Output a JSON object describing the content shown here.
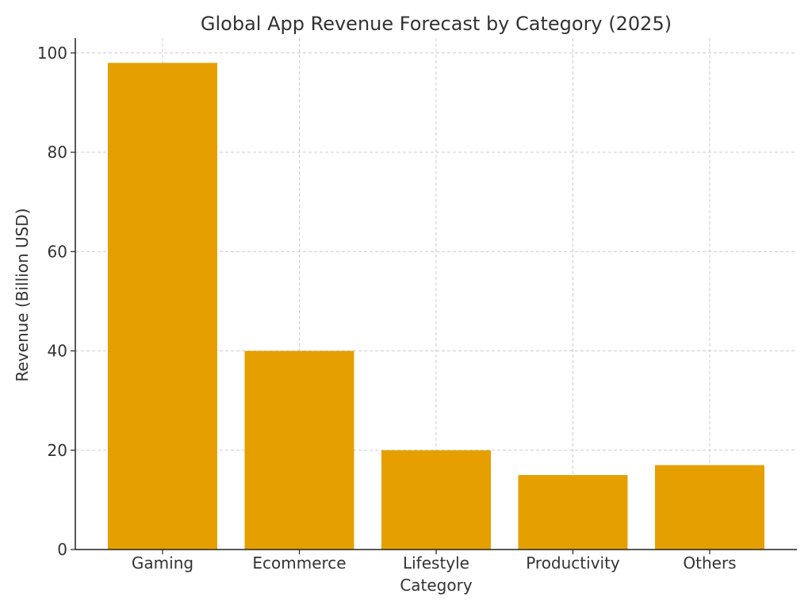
{
  "chart_data": {
    "type": "bar",
    "title": "Global App Revenue Forecast by Category (2025)",
    "xlabel": "Category",
    "ylabel": "Revenue (Billion USD)",
    "categories": [
      "Gaming",
      "Ecommerce",
      "Lifestyle",
      "Productivity",
      "Others"
    ],
    "values": [
      98,
      40,
      20,
      15,
      17
    ],
    "ylim": [
      0,
      103
    ],
    "yticks": [
      0,
      20,
      40,
      60,
      80,
      100
    ],
    "grid": true,
    "bar_color": "#E5A000"
  }
}
